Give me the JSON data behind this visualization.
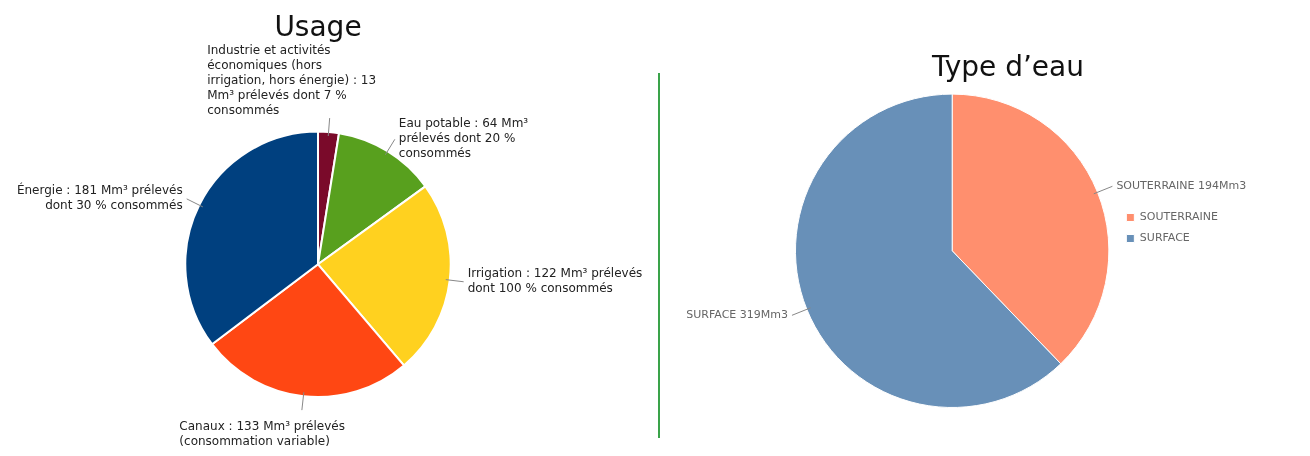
{
  "chart_data": [
    {
      "type": "pie",
      "title": "Usage",
      "categories": [
        "Industrie et activités économiques (hors irrigation, hors énergie) : 13 Mm³ prélevés dont 7 % consommés",
        "Eau potable : 64 Mm³ prélevés dont 20 % consommés",
        "Irrigation : 122 Mm³ prélevés dont 100 % consommés",
        "Canaux : 133 Mm³ prélevés (consommation variable)",
        "Énergie : 181 Mm³ prélevés dont 30 % consommés"
      ],
      "values": [
        13,
        64,
        122,
        133,
        181
      ],
      "colors": [
        "#7a0a2a",
        "#58a01e",
        "#ffd11f",
        "#ff4713",
        "#00407f"
      ],
      "legend": false
    },
    {
      "type": "pie",
      "title": "Type d’eau",
      "categories": [
        "SOUTERRAINE",
        "SURFACE"
      ],
      "values": [
        194,
        319
      ],
      "value_labels": [
        "194Mm3",
        "319Mm3"
      ],
      "colors": [
        "#ff8f6e",
        "#6890b8"
      ],
      "legend": "right"
    }
  ]
}
